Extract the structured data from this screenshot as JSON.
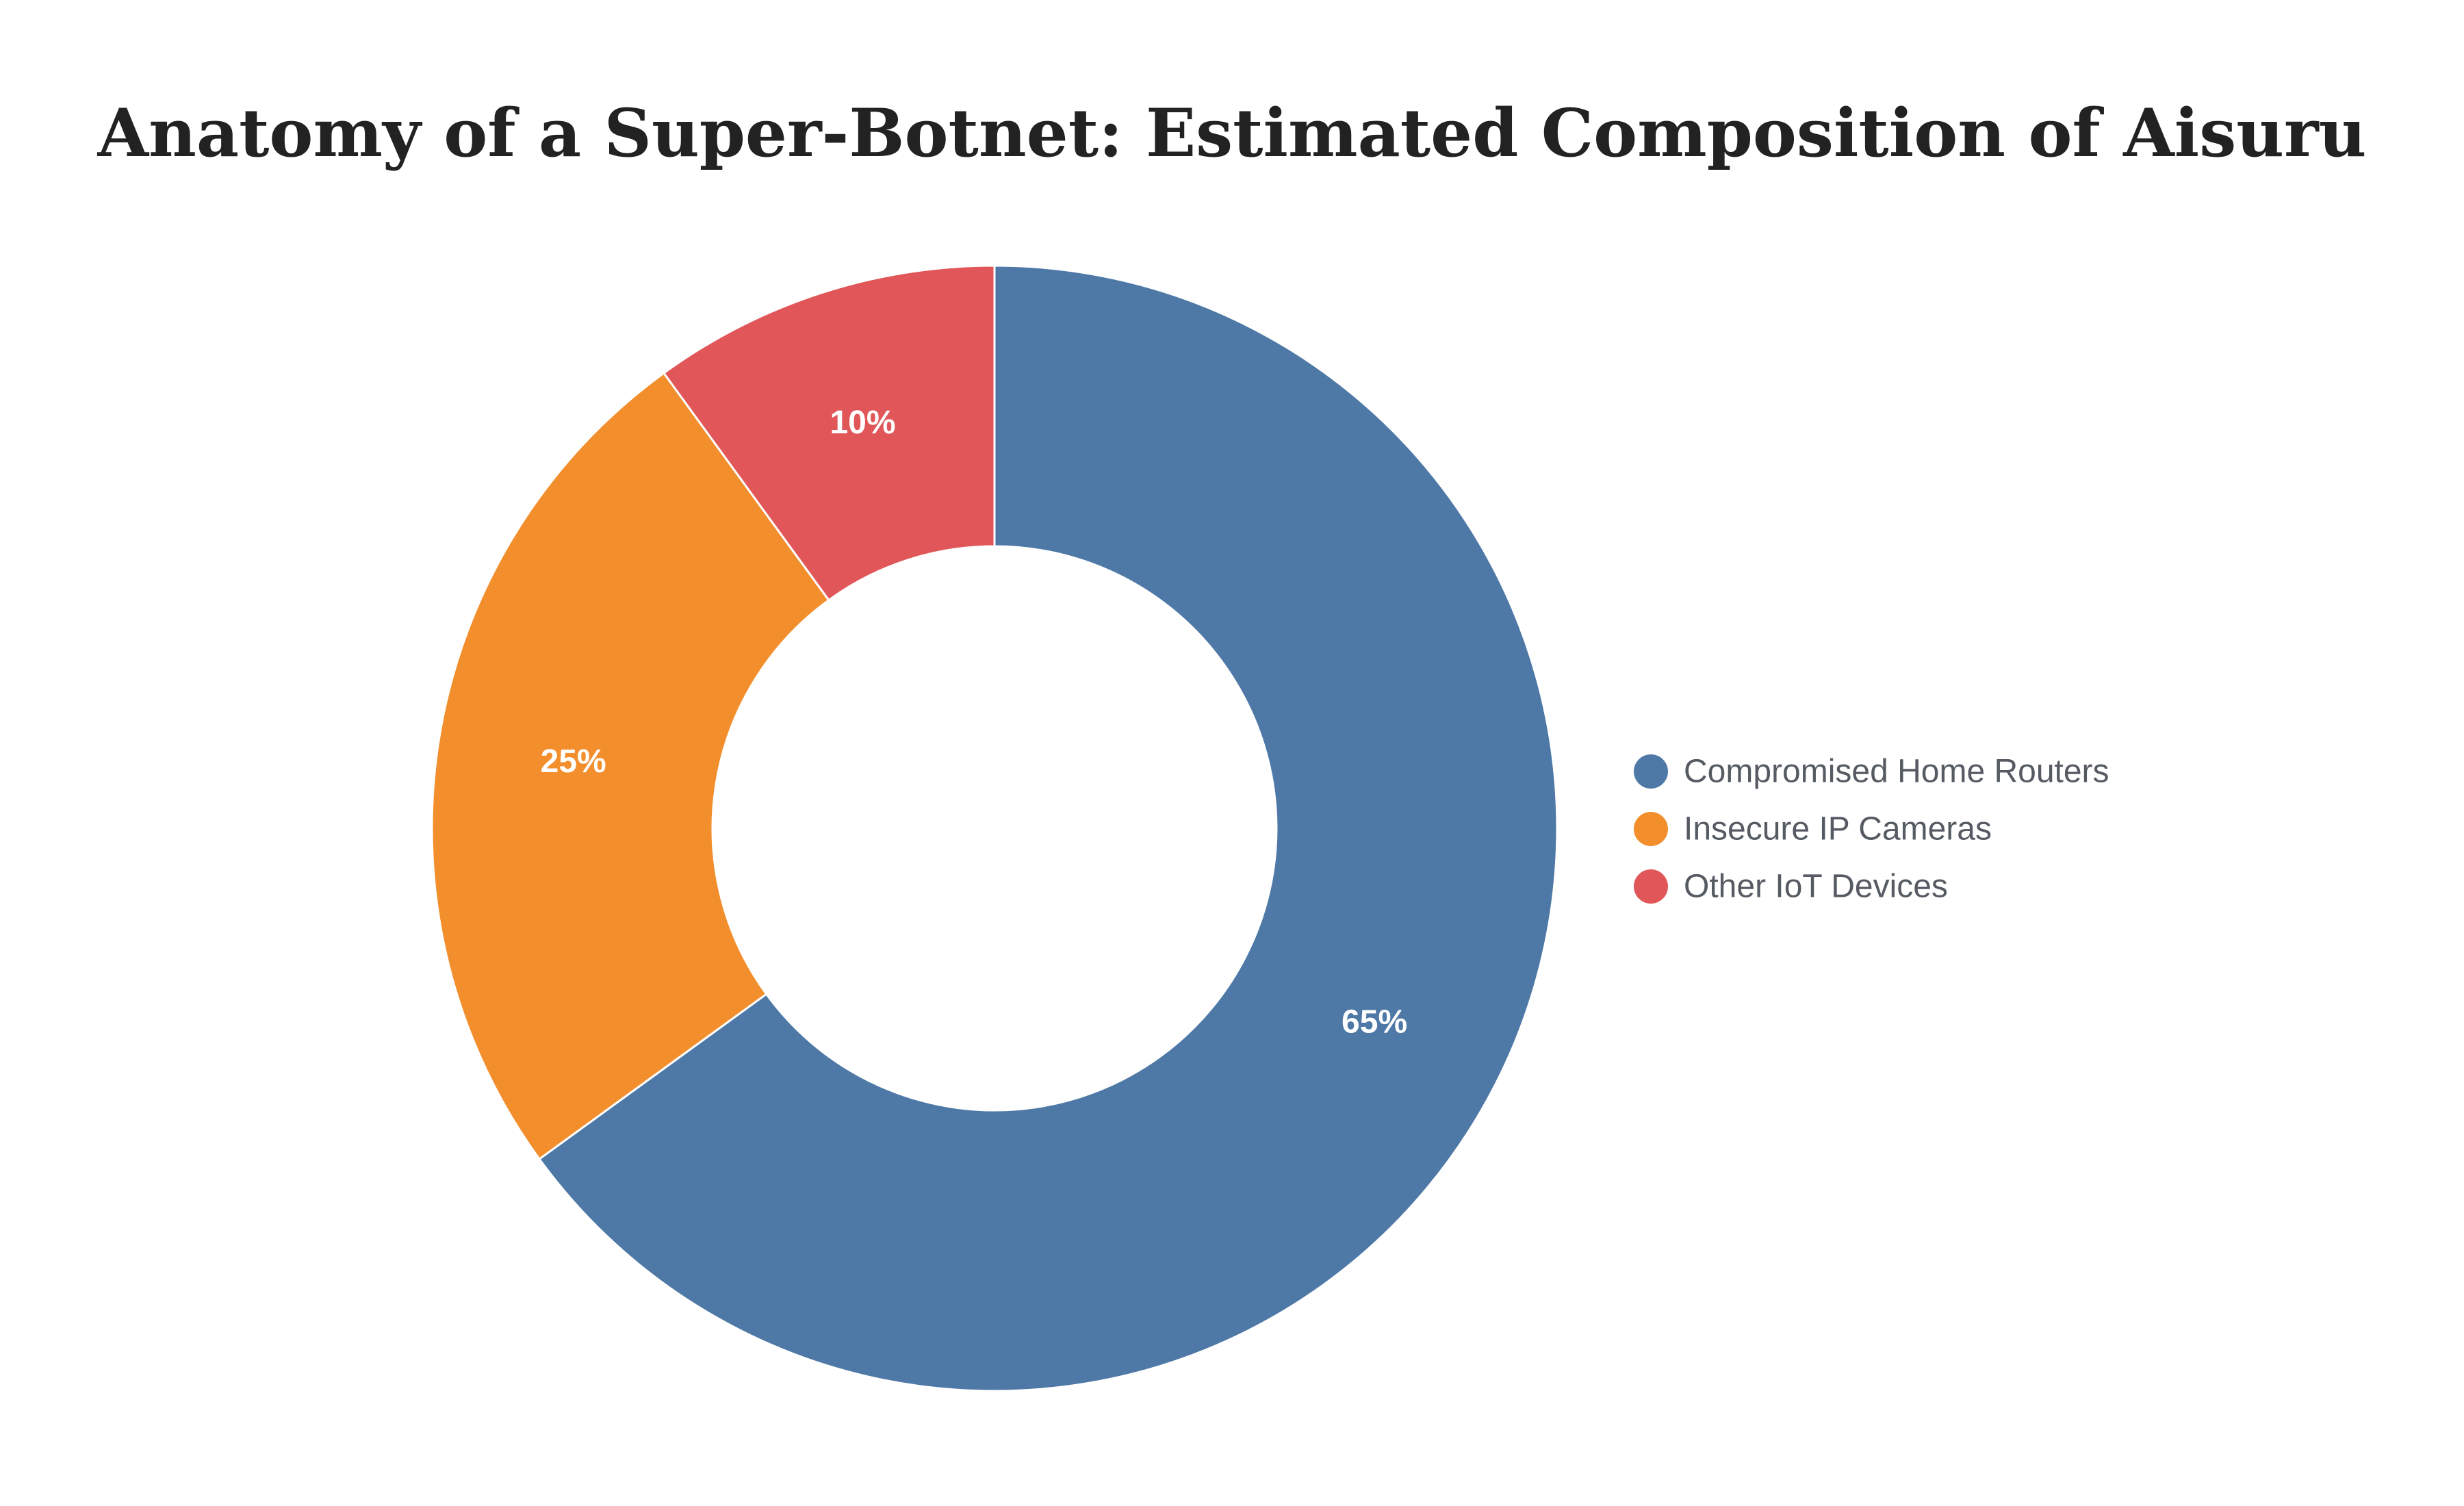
{
  "chart_data": {
    "type": "pie",
    "variant": "donut",
    "title": "Anatomy of a Super-Botnet: Estimated Composition of Aisuru",
    "categories": [
      "Compromised Home Routers",
      "Insecure IP Cameras",
      "Other IoT Devices"
    ],
    "values": [
      65,
      25,
      10
    ],
    "unit": "%",
    "data_labels": [
      "65%",
      "25%",
      "10%"
    ],
    "colors": [
      "#4e78a6",
      "#f28e2c",
      "#e15759"
    ],
    "legend_position": "right",
    "grid": false
  }
}
